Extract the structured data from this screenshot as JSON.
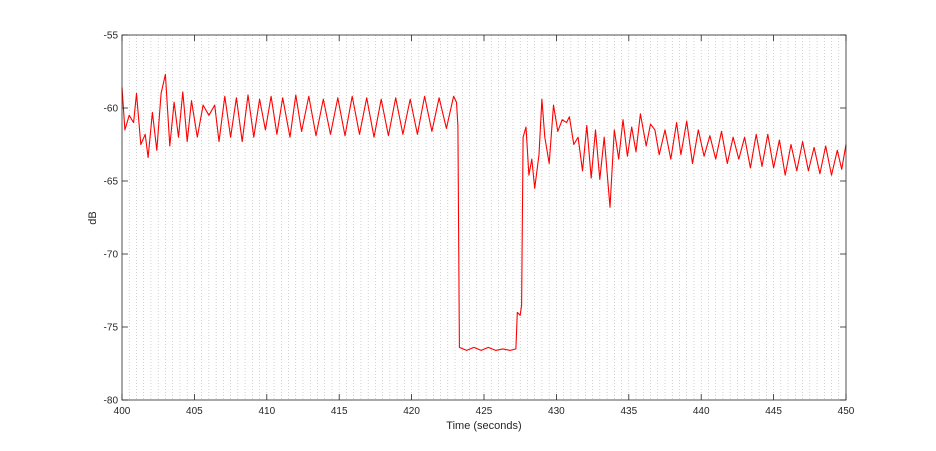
{
  "chart_data": {
    "type": "line",
    "xlabel": "Time (seconds)",
    "ylabel": "dB",
    "xlim": [
      400,
      450
    ],
    "ylim": [
      -80,
      -55
    ],
    "x_ticks": [
      400,
      405,
      410,
      415,
      420,
      425,
      430,
      435,
      440,
      445,
      450
    ],
    "y_ticks": [
      -80,
      -75,
      -70,
      -65,
      -60,
      -55
    ],
    "grid": "vertical dotted every 0.5 s",
    "series": [
      {
        "color": "#ff0000",
        "points": [
          [
            400.0,
            -58.6
          ],
          [
            400.2,
            -61.5
          ],
          [
            400.5,
            -60.5
          ],
          [
            400.8,
            -61.0
          ],
          [
            401.0,
            -59.0
          ],
          [
            401.3,
            -62.5
          ],
          [
            401.6,
            -61.8
          ],
          [
            401.8,
            -63.4
          ],
          [
            402.1,
            -60.3
          ],
          [
            402.4,
            -62.9
          ],
          [
            402.7,
            -59.0
          ],
          [
            403.0,
            -57.7
          ],
          [
            403.3,
            -62.6
          ],
          [
            403.6,
            -59.6
          ],
          [
            403.9,
            -62.0
          ],
          [
            404.2,
            -58.9
          ],
          [
            404.5,
            -62.3
          ],
          [
            404.8,
            -59.5
          ],
          [
            405.2,
            -62.0
          ],
          [
            405.6,
            -59.8
          ],
          [
            406.0,
            -60.5
          ],
          [
            406.4,
            -59.8
          ],
          [
            406.7,
            -62.3
          ],
          [
            407.1,
            -59.2
          ],
          [
            407.5,
            -62.0
          ],
          [
            407.9,
            -59.3
          ],
          [
            408.3,
            -62.3
          ],
          [
            408.7,
            -59.1
          ],
          [
            409.1,
            -62.0
          ],
          [
            409.5,
            -59.4
          ],
          [
            409.9,
            -61.5
          ],
          [
            410.3,
            -59.2
          ],
          [
            410.7,
            -61.8
          ],
          [
            411.1,
            -59.3
          ],
          [
            411.6,
            -62.0
          ],
          [
            412.0,
            -59.1
          ],
          [
            412.4,
            -61.6
          ],
          [
            412.9,
            -59.2
          ],
          [
            413.4,
            -61.9
          ],
          [
            413.9,
            -59.4
          ],
          [
            414.4,
            -61.8
          ],
          [
            414.9,
            -59.3
          ],
          [
            415.4,
            -61.9
          ],
          [
            415.9,
            -59.2
          ],
          [
            416.4,
            -61.8
          ],
          [
            416.9,
            -59.3
          ],
          [
            417.4,
            -62.0
          ],
          [
            417.9,
            -59.4
          ],
          [
            418.4,
            -61.9
          ],
          [
            418.9,
            -59.3
          ],
          [
            419.4,
            -61.8
          ],
          [
            419.9,
            -59.4
          ],
          [
            420.4,
            -61.8
          ],
          [
            420.9,
            -59.2
          ],
          [
            421.4,
            -61.6
          ],
          [
            421.9,
            -59.3
          ],
          [
            422.4,
            -61.4
          ],
          [
            422.9,
            -59.2
          ],
          [
            423.1,
            -59.6
          ],
          [
            423.2,
            -61.2
          ],
          [
            423.3,
            -76.4
          ],
          [
            423.8,
            -76.6
          ],
          [
            424.3,
            -76.4
          ],
          [
            424.8,
            -76.6
          ],
          [
            425.3,
            -76.4
          ],
          [
            425.8,
            -76.6
          ],
          [
            426.3,
            -76.5
          ],
          [
            426.8,
            -76.6
          ],
          [
            427.2,
            -76.5
          ],
          [
            427.3,
            -74.0
          ],
          [
            427.5,
            -74.2
          ],
          [
            427.6,
            -73.5
          ],
          [
            427.7,
            -62.0
          ],
          [
            427.9,
            -61.3
          ],
          [
            428.1,
            -64.6
          ],
          [
            428.3,
            -63.5
          ],
          [
            428.5,
            -65.5
          ],
          [
            428.8,
            -63.2
          ],
          [
            429.0,
            -59.4
          ],
          [
            429.2,
            -62.0
          ],
          [
            429.5,
            -63.8
          ],
          [
            429.8,
            -59.8
          ],
          [
            430.1,
            -61.6
          ],
          [
            430.4,
            -60.8
          ],
          [
            430.7,
            -61.0
          ],
          [
            430.9,
            -60.6
          ],
          [
            431.2,
            -62.5
          ],
          [
            431.5,
            -62.0
          ],
          [
            431.8,
            -64.3
          ],
          [
            432.1,
            -61.2
          ],
          [
            432.4,
            -64.8
          ],
          [
            432.7,
            -61.5
          ],
          [
            433.0,
            -64.9
          ],
          [
            433.3,
            -62.0
          ],
          [
            433.7,
            -66.8
          ],
          [
            434.0,
            -61.5
          ],
          [
            434.3,
            -63.5
          ],
          [
            434.6,
            -60.8
          ],
          [
            434.9,
            -63.3
          ],
          [
            435.2,
            -61.3
          ],
          [
            435.5,
            -63.0
          ],
          [
            435.8,
            -60.4
          ],
          [
            436.2,
            -62.6
          ],
          [
            436.5,
            -61.1
          ],
          [
            436.8,
            -61.5
          ],
          [
            437.1,
            -63.2
          ],
          [
            437.5,
            -61.5
          ],
          [
            437.9,
            -63.5
          ],
          [
            438.3,
            -61.0
          ],
          [
            438.6,
            -63.2
          ],
          [
            439.0,
            -60.9
          ],
          [
            439.4,
            -63.8
          ],
          [
            439.8,
            -61.5
          ],
          [
            440.2,
            -63.3
          ],
          [
            440.6,
            -61.9
          ],
          [
            441.0,
            -63.5
          ],
          [
            441.4,
            -61.6
          ],
          [
            441.8,
            -63.8
          ],
          [
            442.2,
            -62.0
          ],
          [
            442.6,
            -63.5
          ],
          [
            443.0,
            -62.0
          ],
          [
            443.4,
            -64.1
          ],
          [
            443.8,
            -61.8
          ],
          [
            444.2,
            -64.0
          ],
          [
            444.6,
            -61.8
          ],
          [
            445.0,
            -64.1
          ],
          [
            445.4,
            -62.2
          ],
          [
            445.8,
            -64.6
          ],
          [
            446.2,
            -62.5
          ],
          [
            446.6,
            -64.3
          ],
          [
            447.0,
            -62.3
          ],
          [
            447.4,
            -64.3
          ],
          [
            447.8,
            -62.7
          ],
          [
            448.2,
            -64.5
          ],
          [
            448.6,
            -62.6
          ],
          [
            449.0,
            -64.6
          ],
          [
            449.4,
            -62.9
          ],
          [
            449.7,
            -64.2
          ],
          [
            450.0,
            -62.5
          ]
        ]
      }
    ]
  }
}
